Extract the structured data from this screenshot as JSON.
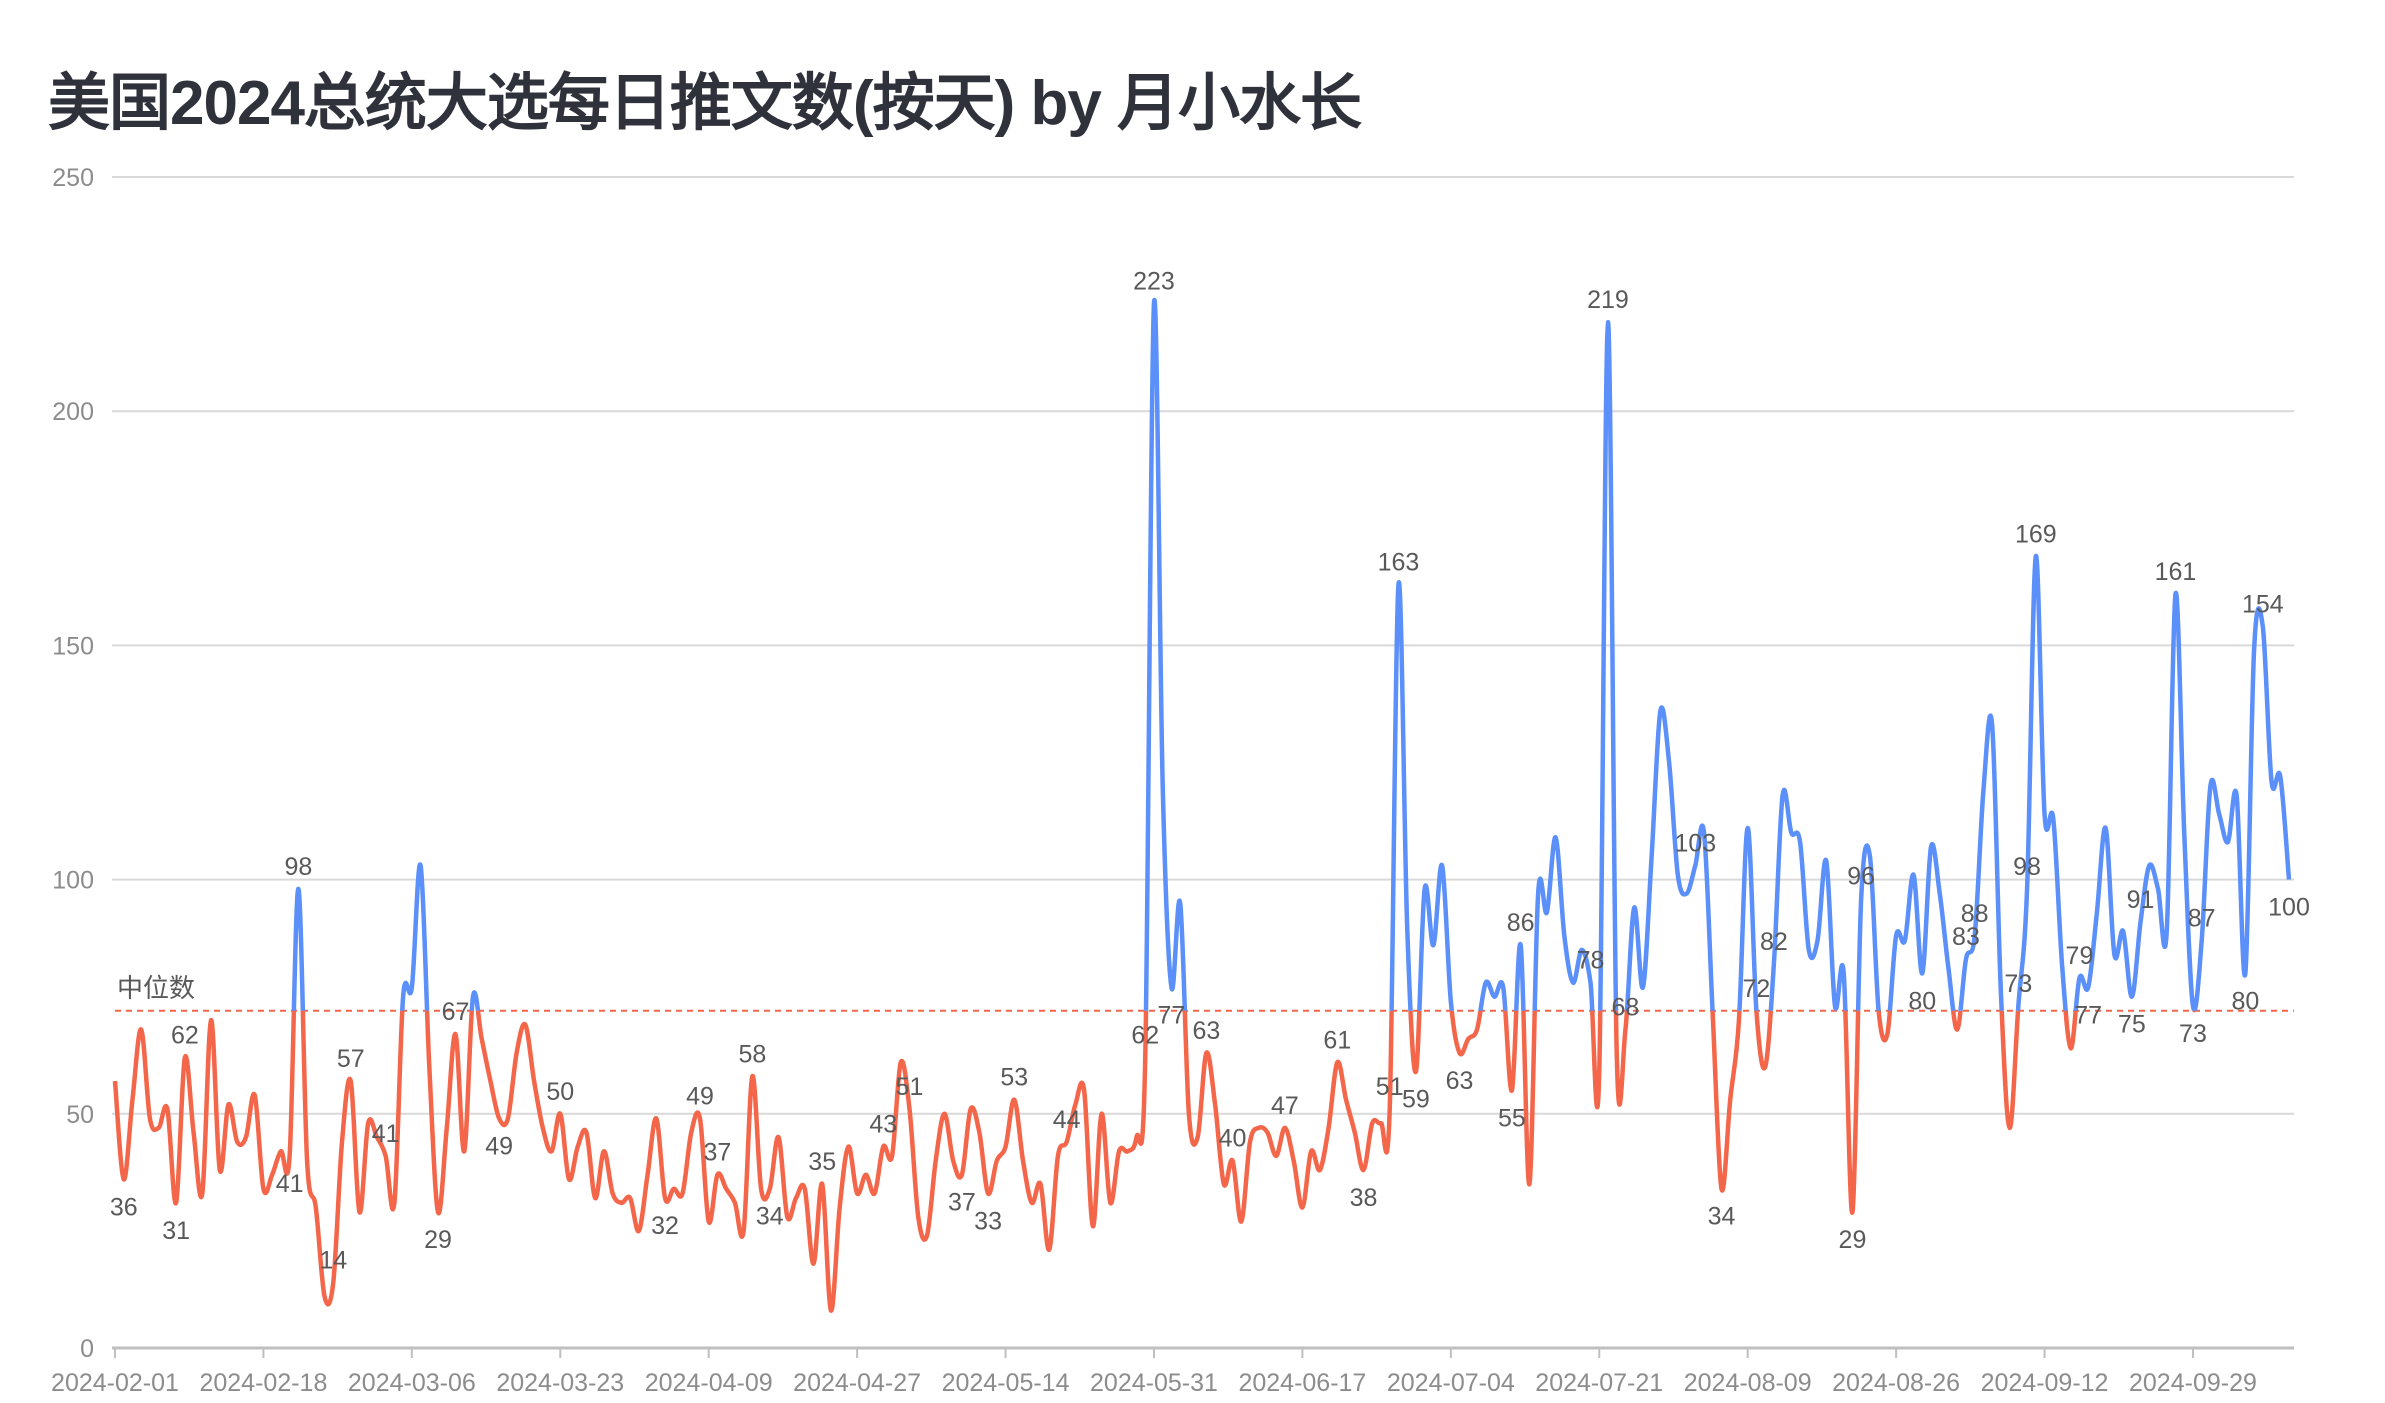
{
  "title": "美国2024总统大选每日推文数(按天) by 月小水长",
  "chart_data": {
    "type": "line",
    "smooth": true,
    "title": "美国2024总统大选每日推文数(按天) by 月小水长",
    "xlabel": "",
    "ylabel": "",
    "ylim": [
      0,
      250
    ],
    "yticks": [
      0,
      50,
      100,
      150,
      200,
      250
    ],
    "grid": true,
    "legend": "none",
    "x_tick_interval": 17,
    "colors": {
      "above_median": "#5B8FF9",
      "below_median": "#F4664A",
      "median_line": "#F4664A",
      "grid": "#d9d9d9"
    },
    "median": {
      "label": "中位数",
      "value": 72
    },
    "categories": [
      "2024-02-01",
      "2024-02-02",
      "2024-02-03",
      "2024-02-04",
      "2024-02-05",
      "2024-02-06",
      "2024-02-07",
      "2024-02-08",
      "2024-02-09",
      "2024-02-10",
      "2024-02-11",
      "2024-02-12",
      "2024-02-13",
      "2024-02-14",
      "2024-02-15",
      "2024-02-16",
      "2024-02-17",
      "2024-02-18",
      "2024-02-19",
      "2024-02-20",
      "2024-02-21",
      "2024-02-22",
      "2024-02-23",
      "2024-02-24",
      "2024-02-25",
      "2024-02-26",
      "2024-02-27",
      "2024-02-28",
      "2024-02-29",
      "2024-03-01",
      "2024-03-02",
      "2024-03-03",
      "2024-03-04",
      "2024-03-05",
      "2024-03-06",
      "2024-03-07",
      "2024-03-08",
      "2024-03-09",
      "2024-03-10",
      "2024-03-11",
      "2024-03-12",
      "2024-03-13",
      "2024-03-14",
      "2024-03-15",
      "2024-03-16",
      "2024-03-17",
      "2024-03-18",
      "2024-03-19",
      "2024-03-20",
      "2024-03-21",
      "2024-03-22",
      "2024-03-23",
      "2024-03-24",
      "2024-03-25",
      "2024-03-26",
      "2024-03-27",
      "2024-03-28",
      "2024-03-29",
      "2024-03-30",
      "2024-03-31",
      "2024-04-01",
      "2024-04-02",
      "2024-04-03",
      "2024-04-04",
      "2024-04-05",
      "2024-04-06",
      "2024-04-07",
      "2024-04-08",
      "2024-04-09",
      "2024-04-10",
      "2024-04-11",
      "2024-04-12",
      "2024-04-13",
      "2024-04-14",
      "2024-04-15",
      "2024-04-16",
      "2024-04-17",
      "2024-04-18",
      "2024-04-19",
      "2024-04-21",
      "2024-04-22",
      "2024-04-23",
      "2024-04-24",
      "2024-04-25",
      "2024-04-26",
      "2024-04-27",
      "2024-04-28",
      "2024-04-29",
      "2024-04-30",
      "2024-05-01",
      "2024-05-02",
      "2024-05-03",
      "2024-05-04",
      "2024-05-05",
      "2024-05-06",
      "2024-05-07",
      "2024-05-08",
      "2024-05-09",
      "2024-05-10",
      "2024-05-11",
      "2024-05-12",
      "2024-05-13",
      "2024-05-14",
      "2024-05-15",
      "2024-05-16",
      "2024-05-17",
      "2024-05-18",
      "2024-05-19",
      "2024-05-20",
      "2024-05-21",
      "2024-05-22",
      "2024-05-23",
      "2024-05-24",
      "2024-05-25",
      "2024-05-26",
      "2024-05-27",
      "2024-05-28",
      "2024-05-29",
      "2024-05-30",
      "2024-05-31",
      "2024-06-01",
      "2024-06-02",
      "2024-06-03",
      "2024-06-04",
      "2024-06-05",
      "2024-06-06",
      "2024-06-07",
      "2024-06-08",
      "2024-06-09",
      "2024-06-10",
      "2024-06-11",
      "2024-06-12",
      "2024-06-13",
      "2024-06-14",
      "2024-06-15",
      "2024-06-16",
      "2024-06-17",
      "2024-06-18",
      "2024-06-19",
      "2024-06-20",
      "2024-06-21",
      "2024-06-22",
      "2024-06-23",
      "2024-06-24",
      "2024-06-25",
      "2024-06-26",
      "2024-06-27",
      "2024-06-28",
      "2024-06-29",
      "2024-06-30",
      "2024-07-01",
      "2024-07-02",
      "2024-07-03",
      "2024-07-04",
      "2024-07-05",
      "2024-07-06",
      "2024-07-07",
      "2024-07-08",
      "2024-07-09",
      "2024-07-10",
      "2024-07-11",
      "2024-07-12",
      "2024-07-13",
      "2024-07-14",
      "2024-07-15",
      "2024-07-16",
      "2024-07-17",
      "2024-07-18",
      "2024-07-19",
      "2024-07-20",
      "2024-07-21",
      "2024-07-22",
      "2024-07-23",
      "2024-07-24",
      "2024-07-25",
      "2024-07-26",
      "2024-07-27",
      "2024-07-30",
      "2024-07-31",
      "2024-08-01",
      "2024-08-02",
      "2024-08-03",
      "2024-08-04",
      "2024-08-05",
      "2024-08-06",
      "2024-08-07",
      "2024-08-08",
      "2024-08-09",
      "2024-08-10",
      "2024-08-11",
      "2024-08-12",
      "2024-08-13",
      "2024-08-14",
      "2024-08-15",
      "2024-08-16",
      "2024-08-17",
      "2024-08-18",
      "2024-08-19",
      "2024-08-20",
      "2024-08-21",
      "2024-08-22",
      "2024-08-23",
      "2024-08-24",
      "2024-08-25",
      "2024-08-26",
      "2024-08-27",
      "2024-08-28",
      "2024-08-29",
      "2024-08-30",
      "2024-08-31",
      "2024-09-01",
      "2024-09-02",
      "2024-09-03",
      "2024-09-04",
      "2024-09-05",
      "2024-09-06",
      "2024-09-07",
      "2024-09-08",
      "2024-09-09",
      "2024-09-10",
      "2024-09-11",
      "2024-09-12",
      "2024-09-13",
      "2024-09-14",
      "2024-09-15",
      "2024-09-16",
      "2024-09-17",
      "2024-09-18",
      "2024-09-19",
      "2024-09-20",
      "2024-09-21",
      "2024-09-22",
      "2024-09-23",
      "2024-09-24",
      "2024-09-25",
      "2024-09-26",
      "2024-09-27",
      "2024-09-28",
      "2024-09-29",
      "2024-09-30",
      "2024-10-01",
      "2024-10-02",
      "2024-10-03",
      "2024-10-04",
      "2024-10-05",
      "2024-10-06",
      "2024-10-07",
      "2024-10-08",
      "2024-10-09",
      "2024-10-10"
    ],
    "values": [
      57,
      36,
      53,
      68,
      49,
      47,
      51,
      31,
      62,
      46,
      33,
      70,
      38,
      52,
      44,
      45,
      54,
      34,
      37,
      42,
      41,
      98,
      40,
      30,
      11,
      14,
      44,
      57,
      29,
      48,
      45,
      41,
      31,
      75,
      77,
      103,
      60,
      29,
      47,
      67,
      42,
      75,
      66,
      57,
      49,
      49,
      63,
      69,
      57,
      47,
      42,
      50,
      36,
      43,
      46,
      32,
      42,
      33,
      31,
      32,
      25,
      37,
      49,
      32,
      34,
      33,
      46,
      49,
      27,
      37,
      34,
      31,
      25,
      58,
      34,
      34,
      45,
      28,
      32,
      34,
      18,
      35,
      8,
      30,
      43,
      33,
      37,
      33,
      43,
      41,
      61,
      51,
      28,
      24,
      40,
      50,
      40,
      37,
      51,
      46,
      33,
      40,
      43,
      53,
      40,
      31,
      35,
      21,
      41,
      44,
      52,
      55,
      26,
      50,
      31,
      42,
      42,
      45,
      62,
      223,
      120,
      77,
      95,
      50,
      45,
      63,
      52,
      35,
      40,
      27,
      44,
      47,
      46,
      41,
      47,
      40,
      30,
      42,
      38,
      47,
      61,
      53,
      46,
      38,
      48,
      48,
      51,
      163,
      90,
      59,
      98,
      86,
      103,
      74,
      63,
      66,
      68,
      78,
      75,
      77,
      55,
      86,
      35,
      97,
      93,
      109,
      88,
      78,
      85,
      78,
      59,
      219,
      63,
      68,
      94,
      77,
      105,
      136,
      125,
      101,
      97,
      103,
      110,
      71,
      34,
      53,
      70,
      111,
      72,
      60,
      82,
      118,
      110,
      108,
      85,
      87,
      104,
      73,
      80,
      29,
      96,
      105,
      72,
      67,
      88,
      87,
      101,
      80,
      107,
      97,
      81,
      68,
      83,
      88,
      119,
      133,
      76,
      47,
      73,
      98,
      169,
      114,
      113,
      82,
      64,
      79,
      77,
      93,
      111,
      84,
      89,
      75,
      91,
      103,
      98,
      89,
      161,
      110,
      73,
      87,
      120,
      114,
      108,
      118,
      80,
      149,
      154,
      121,
      122,
      100
    ],
    "labeled_dates": [
      "2024-02-02",
      "2024-02-08",
      "2024-02-09",
      "2024-02-21",
      "2024-02-22",
      "2024-02-26",
      "2024-02-28",
      "2024-03-03",
      "2024-03-09",
      "2024-03-11",
      "2024-03-16",
      "2024-03-23",
      "2024-04-04",
      "2024-04-08",
      "2024-04-10",
      "2024-04-14",
      "2024-04-16",
      "2024-04-23",
      "2024-04-30",
      "2024-05-03",
      "2024-05-09",
      "2024-05-12",
      "2024-05-15",
      "2024-05-21",
      "2024-05-30",
      "2024-05-31",
      "2024-06-02",
      "2024-06-06",
      "2024-06-09",
      "2024-06-15",
      "2024-06-21",
      "2024-06-24",
      "2024-06-27",
      "2024-06-28",
      "2024-06-30",
      "2024-07-05",
      "2024-07-11",
      "2024-07-12",
      "2024-07-20",
      "2024-07-22",
      "2024-07-24",
      "2024-08-03",
      "2024-08-06",
      "2024-08-10",
      "2024-08-12",
      "2024-08-21",
      "2024-08-22",
      "2024-08-29",
      "2024-09-03",
      "2024-09-04",
      "2024-09-09",
      "2024-09-10",
      "2024-09-11",
      "2024-09-16",
      "2024-09-17",
      "2024-09-22",
      "2024-09-23",
      "2024-09-27",
      "2024-09-29",
      "2024-09-30",
      "2024-10-05",
      "2024-10-07",
      "2024-10-10"
    ]
  }
}
